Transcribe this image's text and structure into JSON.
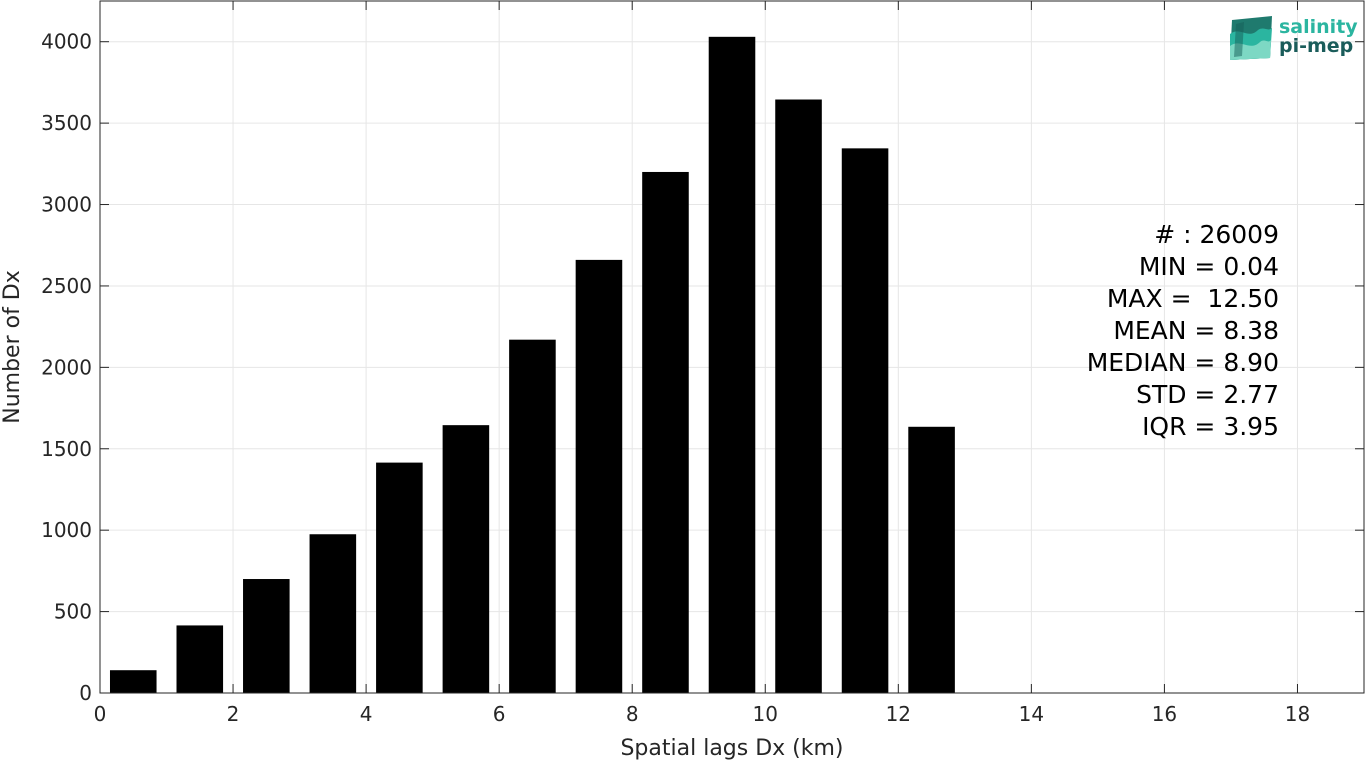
{
  "chart_data": {
    "type": "bar",
    "xlabel": "Spatial lags Dx (km)",
    "ylabel": "Number of Dx",
    "xlim": [
      0,
      19
    ],
    "ylim": [
      0,
      4250
    ],
    "xticks": [
      0,
      2,
      4,
      6,
      8,
      10,
      12,
      14,
      16,
      18
    ],
    "yticks": [
      0,
      500,
      1000,
      1500,
      2000,
      2500,
      3000,
      3500,
      4000
    ],
    "grid": true,
    "bar_color": "#000000",
    "bar_width": 0.7,
    "x": [
      0.5,
      1.5,
      2.5,
      3.5,
      4.5,
      5.5,
      6.5,
      7.5,
      8.5,
      9.5,
      10.5,
      11.5,
      12.5
    ],
    "values": [
      140,
      415,
      700,
      975,
      1415,
      1645,
      2170,
      2660,
      3200,
      4030,
      3645,
      3345,
      1635
    ]
  },
  "stats": [
    "# : 26009",
    "MIN = 0.04",
    "MAX =  12.50",
    "MEAN = 8.38",
    "MEDIAN = 8.90",
    "STD = 2.77",
    "IQR = 3.95"
  ],
  "logo": {
    "line1": "salinity",
    "line2": "pi-mep",
    "color_dark": "#1a5c5a",
    "color_teal": "#2bb5a0",
    "icon": "wave-ribbon-icon"
  }
}
